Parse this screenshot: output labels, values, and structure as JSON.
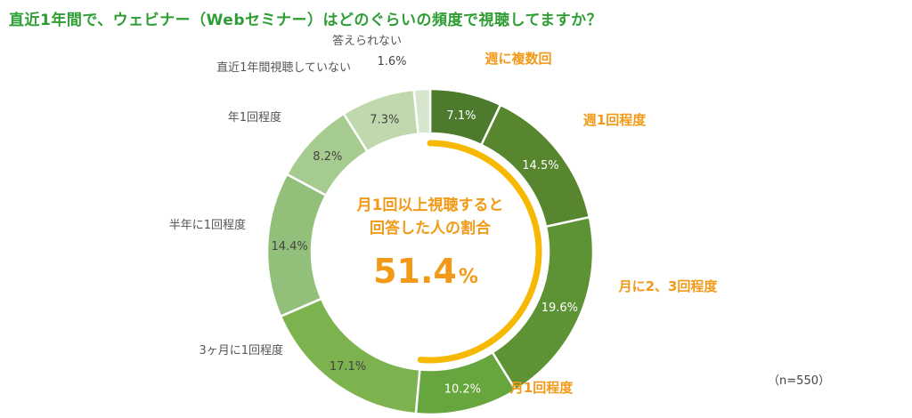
{
  "title": "直近1年間で、ウェビナー（Webセミナー）はどのぐらいの頻度で視聴してますか？",
  "note": "（n=550）",
  "center": {
    "line1": "月1回以上視聴すると",
    "line2": "回答した人の割合",
    "value": "51.4",
    "unit": "%"
  },
  "colors": {
    "title": "#2e9e34",
    "highlight": "#f29a18",
    "arc": "#f6b800"
  },
  "chart_data": {
    "type": "pie",
    "variant": "donut",
    "title": "直近1年間で、ウェビナー（Webセミナー）はどのぐらいの頻度で視聴してますか？",
    "unit": "%",
    "categories": [
      "週に複数回",
      "週1回程度",
      "月に2、3回程度",
      "月1回程度",
      "3ヶ月に1回程度",
      "半年に1回程度",
      "年1回程度",
      "直近1年間視聴していない",
      "答えられない"
    ],
    "values": [
      7.1,
      14.5,
      19.6,
      10.2,
      17.1,
      14.4,
      8.2,
      7.3,
      1.6
    ],
    "value_labels": [
      "7.1%",
      "14.5%",
      "19.6%",
      "10.2%",
      "17.1%",
      "14.4%",
      "8.2%",
      "7.3%",
      "1.6%"
    ],
    "colors": [
      "#4e7a2e",
      "#57862f",
      "#5d9334",
      "#67a63c",
      "#7cb34f",
      "#92c07a",
      "#a6cb8e",
      "#bfd8ae",
      "#d6e6cc"
    ],
    "label_colors": [
      "#f29a18",
      "#f29a18",
      "#f29a18",
      "#f29a18",
      "#555555",
      "#555555",
      "#555555",
      "#555555",
      "#555555"
    ],
    "value_colors": [
      "#ffffff",
      "#ffffff",
      "#ffffff",
      "#ffffff",
      "#444444",
      "#444444",
      "#444444",
      "#444444",
      "#444444"
    ],
    "highlight_total": 51.4,
    "n": 550
  }
}
